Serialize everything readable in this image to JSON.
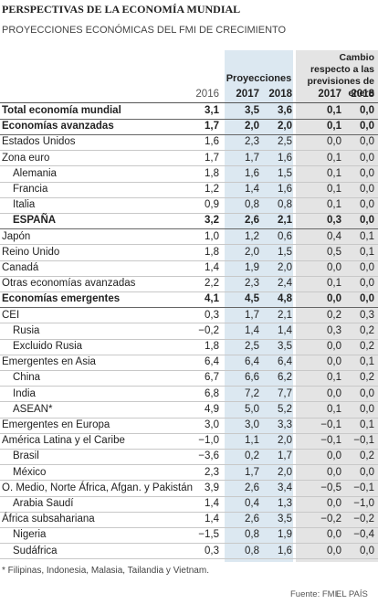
{
  "header": {
    "title": "PERSPECTIVAS DE LA ECONOMÍA MUNDIAL",
    "subtitle": "PROYECCIONES ECONÓMICAS DEL FMI DE CRECIMIENTO"
  },
  "table": {
    "year_header": "2016",
    "proj_header": "Proyecciones",
    "change_header": "Cambio respecto a las previsiones de enero",
    "sub_headers": [
      "2017",
      "2018",
      "2017",
      "2018"
    ],
    "rows": [
      {
        "label": "Total economía mundial",
        "values": [
          "3,1",
          "3,5",
          "3,6",
          "0,1",
          "0,0"
        ],
        "bold": true
      },
      {
        "label": "Economías avanzadas",
        "values": [
          "1,7",
          "2,0",
          "2,0",
          "0,1",
          "0,0"
        ],
        "bold": true
      },
      {
        "label": "Estados Unidos",
        "values": [
          "1,6",
          "2,3",
          "2,5",
          "0,0",
          "0,0"
        ]
      },
      {
        "label": "Zona euro",
        "values": [
          "1,7",
          "1,7",
          "1,6",
          "0,1",
          "0,0"
        ]
      },
      {
        "label": "Alemania",
        "values": [
          "1,8",
          "1,6",
          "1,5",
          "0,1",
          "0,0"
        ],
        "indent": true
      },
      {
        "label": "Francia",
        "values": [
          "1,2",
          "1,4",
          "1,6",
          "0,1",
          "0,0"
        ],
        "indent": true
      },
      {
        "label": "Italia",
        "values": [
          "0,9",
          "0,8",
          "0,8",
          "0,1",
          "0,0"
        ],
        "indent": true
      },
      {
        "label": "ESPAÑA",
        "values": [
          "3,2",
          "2,6",
          "2,1",
          "0,3",
          "0,0"
        ],
        "bold": true,
        "indent": true
      },
      {
        "label": "Japón",
        "values": [
          "1,0",
          "1,2",
          "0,6",
          "0,4",
          "0,1"
        ]
      },
      {
        "label": "Reino Unido",
        "values": [
          "1,8",
          "2,0",
          "1,5",
          "0,5",
          "0,1"
        ]
      },
      {
        "label": "Canadá",
        "values": [
          "1,4",
          "1,9",
          "2,0",
          "0,0",
          "0,0"
        ]
      },
      {
        "label": "Otras economías avanzadas",
        "values": [
          "2,2",
          "2,3",
          "2,4",
          "0,1",
          "0,0"
        ]
      },
      {
        "label": "Economías emergentes",
        "values": [
          "4,1",
          "4,5",
          "4,8",
          "0,0",
          "0,0"
        ],
        "bold": true
      },
      {
        "label": "CEI",
        "values": [
          "0,3",
          "1,7",
          "2,1",
          "0,2",
          "0,3"
        ]
      },
      {
        "label": "Rusia",
        "values": [
          "−0,2",
          "1,4",
          "1,4",
          "0,3",
          "0,2"
        ],
        "indent": true
      },
      {
        "label": "Excluido Rusia",
        "values": [
          "1,8",
          "2,5",
          "3,5",
          "0,0",
          "0,2"
        ],
        "indent": true
      },
      {
        "label": "Emergentes en Asia",
        "values": [
          "6,4",
          "6,4",
          "6,4",
          "0,0",
          "0,1"
        ]
      },
      {
        "label": "China",
        "values": [
          "6,7",
          "6,6",
          "6,2",
          "0,1",
          "0,2"
        ],
        "indent": true
      },
      {
        "label": "India",
        "values": [
          "6,8",
          "7,2",
          "7,7",
          "0,0",
          "0,0"
        ],
        "indent": true
      },
      {
        "label": "ASEAN*",
        "values": [
          "4,9",
          "5,0",
          "5,2",
          "0,1",
          "0,0"
        ],
        "indent": true
      },
      {
        "label": "Emergentes en Europa",
        "values": [
          "3,0",
          "3,0",
          "3,3",
          "−0,1",
          "0,1"
        ]
      },
      {
        "label": "América Latina y el Caribe",
        "values": [
          "−1,0",
          "1,1",
          "2,0",
          "−0,1",
          "−0,1"
        ]
      },
      {
        "label": "Brasil",
        "values": [
          "−3,6",
          "0,2",
          "1,7",
          "0,0",
          "0,2"
        ],
        "indent": true
      },
      {
        "label": "México",
        "values": [
          "2,3",
          "1,7",
          "2,0",
          "0,0",
          "0,0"
        ],
        "indent": true
      },
      {
        "label": "O. Medio, Norte África, Afgan. y Pakistán",
        "values": [
          "3,9",
          "2,6",
          "3,4",
          "−0,5",
          "−0,1"
        ]
      },
      {
        "label": "Arabia Saudí",
        "values": [
          "1,4",
          "0,4",
          "1,3",
          "0,0",
          "−1,0"
        ],
        "indent": true
      },
      {
        "label": "África subsahariana",
        "values": [
          "1,4",
          "2,6",
          "3,5",
          "−0,2",
          "−0,2"
        ]
      },
      {
        "label": "Nigeria",
        "values": [
          "−1,5",
          "0,8",
          "1,9",
          "0,0",
          "−0,4"
        ],
        "indent": true
      },
      {
        "label": "Sudáfrica",
        "values": [
          "0,3",
          "0,8",
          "1,6",
          "0,0",
          "0,0"
        ],
        "indent": true
      }
    ]
  },
  "footer": {
    "note": "* Filipinas, Indonesia, Malasia, Tailandia y Vietnam.",
    "source": "Fuente: FMI.",
    "brand": "EL PAÍS"
  }
}
